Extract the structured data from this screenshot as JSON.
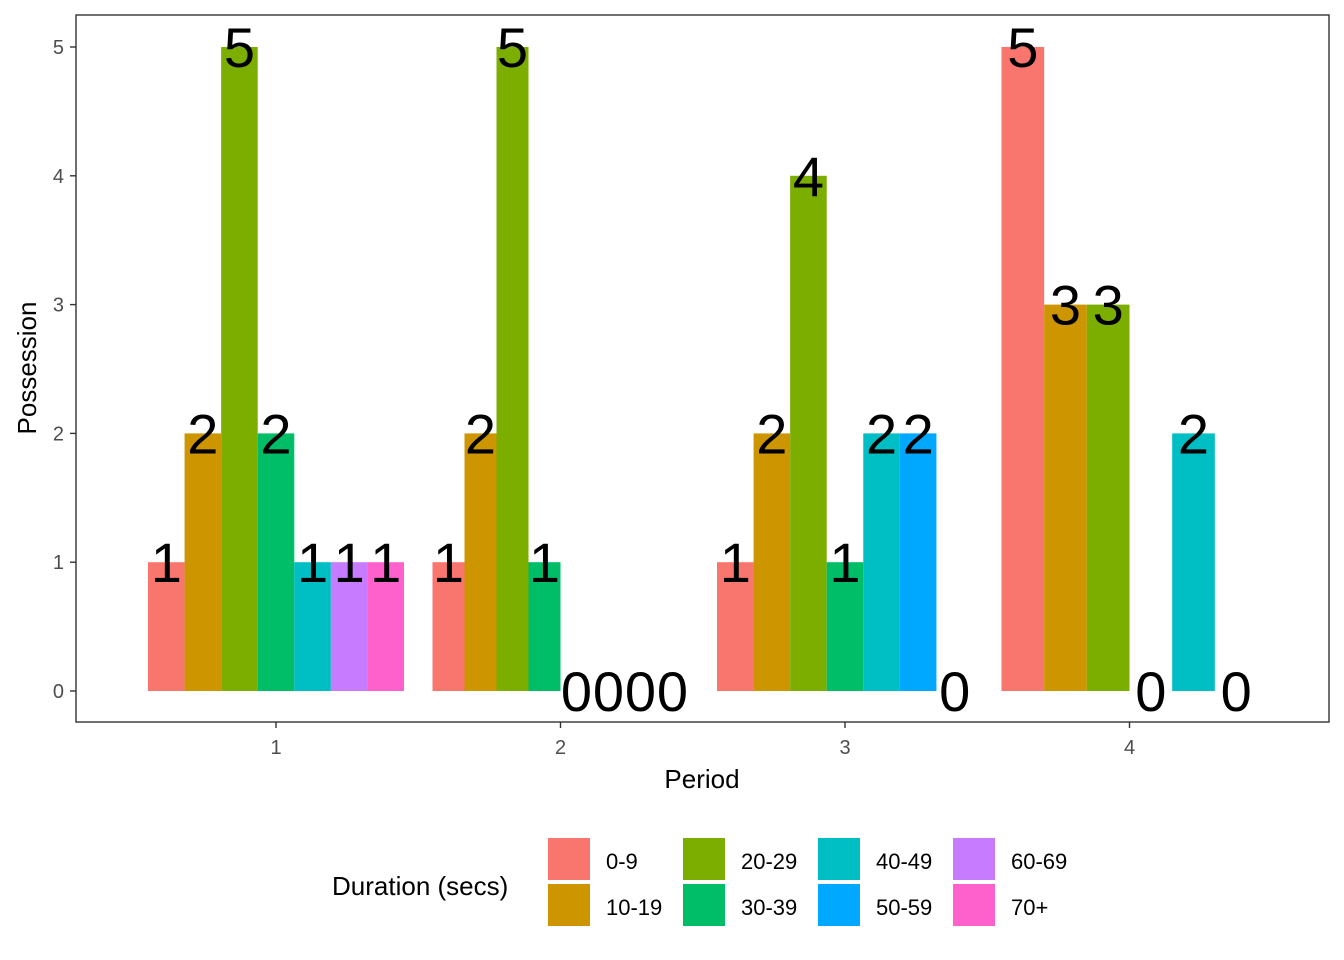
{
  "chart_data": {
    "type": "bar",
    "subtype": "grouped",
    "categories": [
      "1",
      "2",
      "3",
      "4"
    ],
    "xlabel": "Period",
    "ylabel": "Possession",
    "ylim": [
      0,
      5
    ],
    "yticks": [
      "0",
      "1",
      "2",
      "3",
      "4",
      "5"
    ],
    "legend_title": "Duration (secs)",
    "legend_position": "bottom",
    "series": [
      {
        "name": "0-9",
        "color": "#F8766D",
        "values": [
          1,
          1,
          1,
          5
        ]
      },
      {
        "name": "10-19",
        "color": "#CD9600",
        "values": [
          2,
          2,
          2,
          3
        ]
      },
      {
        "name": "20-29",
        "color": "#7CAE00",
        "values": [
          5,
          5,
          4,
          3
        ]
      },
      {
        "name": "30-39",
        "color": "#00BE67",
        "values": [
          2,
          1,
          1,
          0
        ]
      },
      {
        "name": "40-49",
        "color": "#00BFC4",
        "values": [
          1,
          0,
          2,
          2
        ]
      },
      {
        "name": "50-59",
        "color": "#00A9FF",
        "values": [
          null,
          0,
          2,
          null
        ]
      },
      {
        "name": "60-69",
        "color": "#C77CFF",
        "values": [
          1,
          0,
          null,
          null
        ]
      },
      {
        "name": "70+",
        "color": "#FF61CC",
        "values": [
          1,
          0,
          0,
          0
        ]
      }
    ],
    "grid": false
  }
}
